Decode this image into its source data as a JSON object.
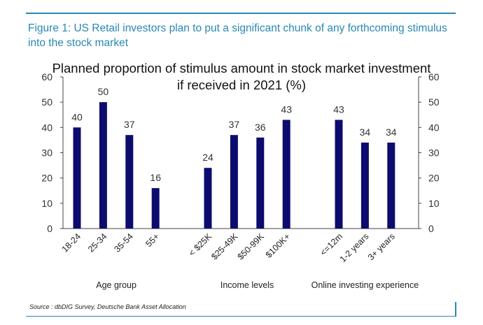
{
  "figure": {
    "title": "Figure 1: US Retail investors plan to put a significant chunk of any forthcoming stimulus into the stock market",
    "source": "Source : dbDIG Survey, Deutsche Bank Asset Allocation",
    "accent_color": "#2b87b5"
  },
  "chart_data": {
    "type": "bar",
    "title_lines": [
      "Planned proportion of stimulus amount in stock market investment",
      "if received in 2021 (%)"
    ],
    "ylim": [
      0,
      60
    ],
    "yticks": [
      0,
      10,
      20,
      30,
      40,
      50,
      60
    ],
    "y_axis_both_sides": true,
    "bar_color": "#0c0c6e",
    "groups": [
      {
        "label": "Age group",
        "categories": [
          "18-24",
          "25-34",
          "35-54",
          "55+"
        ],
        "values": [
          40,
          50,
          37,
          16
        ]
      },
      {
        "label": "Income levels",
        "categories": [
          "< $25K",
          "$25-49K",
          "$50-99K",
          "$100K+"
        ],
        "values": [
          24,
          37,
          36,
          43
        ]
      },
      {
        "label": "Online investing experience",
        "categories": [
          "<=12m",
          "1-2 years",
          "3+ years"
        ],
        "values": [
          43,
          34,
          34
        ]
      }
    ]
  }
}
